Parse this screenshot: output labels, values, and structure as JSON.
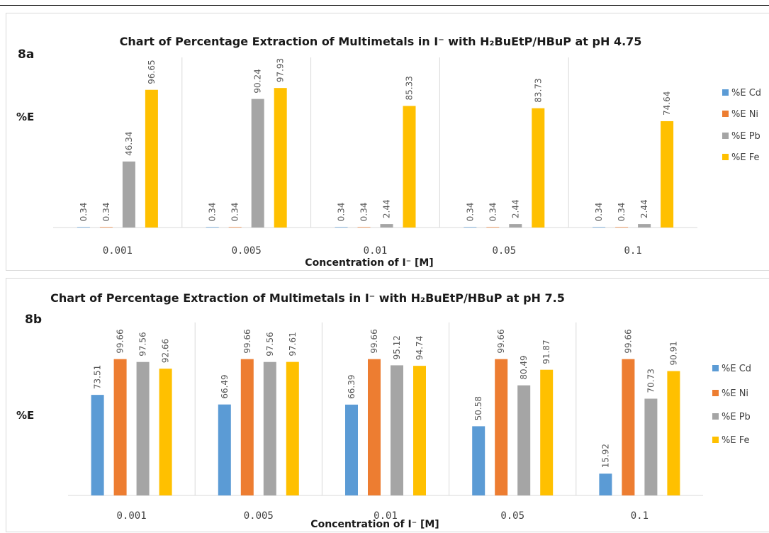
{
  "chart_data": [
    {
      "type": "bar",
      "panel_label": "8a",
      "title": "Chart of Percentage Extraction of Multimetals in I⁻ with H₂BuEtP/HBuP at pH 4.75",
      "xlabel": "Concentration of I⁻ [M]",
      "ylabel": "%E",
      "categories": [
        "0.001",
        "0.005",
        "0.01",
        "0.05",
        "0.1"
      ],
      "series": [
        {
          "name": "%E  Cd",
          "color": "#5B9BD5",
          "values": [
            0.34,
            0.34,
            0.34,
            0.34,
            0.34
          ],
          "labels": [
            "0.34",
            "0.34",
            "0.34",
            "0.34",
            "0.34"
          ]
        },
        {
          "name": "%E Ni",
          "color": "#ED7D31",
          "values": [
            0.34,
            0.34,
            0.34,
            0.34,
            0.34
          ],
          "labels": [
            "0.34",
            "0.34",
            "0.34",
            "0.34",
            "0.34"
          ]
        },
        {
          "name": "%E Pb",
          "color": "#A5A5A5",
          "values": [
            46.34,
            90.24,
            2.44,
            2.44,
            2.44
          ],
          "labels": [
            "46.34",
            "90.24",
            "2.44",
            "2.44",
            "2.44"
          ]
        },
        {
          "name": "%E Fe",
          "color": "#FFC000",
          "values": [
            96.65,
            97.93,
            85.33,
            83.73,
            74.64
          ],
          "labels": [
            "96.65",
            "97.93",
            "85.33",
            "83.73",
            "74.64"
          ]
        }
      ],
      "ylim": [
        0,
        100
      ],
      "grid": false,
      "legend": "right"
    },
    {
      "type": "bar",
      "panel_label": "8b",
      "title": "Chart of Percentage Extraction of Multimetals in I⁻ with H₂BuEtP/HBuP at pH 7.5",
      "xlabel": "Concentration of I⁻ [M]",
      "ylabel": "%E",
      "categories": [
        "0.001",
        "0.005",
        "0.01",
        "0.05",
        "0.1"
      ],
      "series": [
        {
          "name": "%E  Cd",
          "color": "#5B9BD5",
          "values": [
            73.51,
            66.49,
            66.39,
            50.58,
            15.92
          ],
          "labels": [
            "73.51",
            "66.49",
            "66.39",
            "50.58",
            "15.92"
          ]
        },
        {
          "name": "%E Ni",
          "color": "#ED7D31",
          "values": [
            99.66,
            99.66,
            99.66,
            99.66,
            99.66
          ],
          "labels": [
            "99.66",
            "99.66",
            "99.66",
            "99.66",
            "99.66"
          ]
        },
        {
          "name": "%E Pb",
          "color": "#A5A5A5",
          "values": [
            97.56,
            97.56,
            95.12,
            80.49,
            70.73
          ],
          "labels": [
            "97.56",
            "97.56",
            "95.12",
            "80.49",
            "70.73"
          ]
        },
        {
          "name": "%E Fe",
          "color": "#FFC000",
          "values": [
            92.66,
            97.61,
            94.74,
            91.87,
            90.91
          ],
          "labels": [
            "92.66",
            "97.61",
            "94.74",
            "91.87",
            "90.91"
          ]
        }
      ],
      "ylim": [
        0,
        100
      ],
      "grid": false,
      "legend": "right"
    }
  ]
}
